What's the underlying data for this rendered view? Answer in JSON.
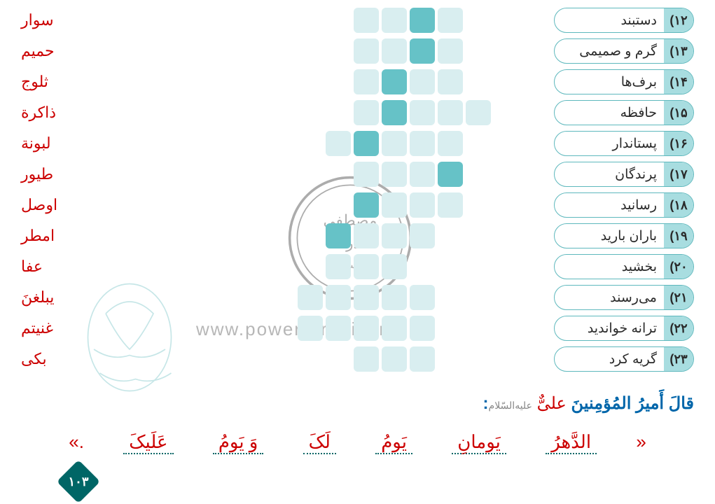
{
  "colors": {
    "cell_empty": "#d9eef0",
    "cell_highlight": "#66c2c7",
    "clue_border": "#5eb8bd",
    "clue_num_bg": "#a8dde0",
    "clue_text_color": "#2a2a2a",
    "answer_color": "#cc0000",
    "page_bg": "#ffffff",
    "teal": "#006666"
  },
  "rows": [
    {
      "num": "۱۲",
      "clue": "دستبند",
      "answer": "سوار",
      "letters": 4,
      "hl": [
        1
      ],
      "offset": 3
    },
    {
      "num": "۱۳",
      "clue": "گرم و صمیمی",
      "answer": "حمیم",
      "letters": 4,
      "hl": [
        1
      ],
      "offset": 3
    },
    {
      "num": "۱۴",
      "clue": "برف‌ها",
      "answer": "ثلوج",
      "letters": 4,
      "hl": [
        2
      ],
      "offset": 3
    },
    {
      "num": "۱۵",
      "clue": "حافظه",
      "answer": "ذاکرة",
      "letters": 5,
      "hl": [
        3
      ],
      "offset": 2
    },
    {
      "num": "۱۶",
      "clue": "پستاندار",
      "answer": "لبونة",
      "letters": 5,
      "hl": [
        3
      ],
      "offset": 3
    },
    {
      "num": "۱۷",
      "clue": "پرندگان",
      "answer": "طیور",
      "letters": 4,
      "hl": [
        0
      ],
      "offset": 3
    },
    {
      "num": "۱۸",
      "clue": "رسانید",
      "answer": "اوصل",
      "letters": 4,
      "hl": [
        3
      ],
      "offset": 3
    },
    {
      "num": "۱۹",
      "clue": "باران بارید",
      "answer": "امطر",
      "letters": 4,
      "hl": [
        3
      ],
      "offset": 4
    },
    {
      "num": "۲۰",
      "clue": "بخشید",
      "answer": "عفا",
      "letters": 3,
      "hl": [],
      "offset": 5
    },
    {
      "num": "۲۱",
      "clue": "می‌رسند",
      "answer": "یبلغنَ",
      "letters": 5,
      "hl": [],
      "offset": 4
    },
    {
      "num": "۲۲",
      "clue": "ترانه خواندید",
      "answer": "غنیتم",
      "letters": 5,
      "hl": [],
      "offset": 4
    },
    {
      "num": "۲۳",
      "clue": "گریه کرد",
      "answer": "بکی",
      "letters": 3,
      "hl": [],
      "offset": 4
    }
  ],
  "clue_width": 200,
  "quote": {
    "intro_verb": "قالَ",
    "intro_title": "أَمیرُ المُؤمِنینَ",
    "intro_name": "علیٌّ",
    "intro_honorific": "علیه‌السّلام",
    "words": [
      "الدَّهرُ",
      "یَومانِ",
      "یَومُ",
      "لَکَ",
      "وَ یَومُ",
      "عَلَیکَ"
    ],
    "open_quote": "«",
    "close_quote": ".»"
  },
  "watermark": "www.power-arabic.ir",
  "page_number": "۱۰۳",
  "cell": {
    "size": 36,
    "radius": 6,
    "gap": 4
  },
  "typography": {
    "clue_fontsize": 19,
    "answer_fontsize": 22,
    "quote_fontsize": 26
  }
}
